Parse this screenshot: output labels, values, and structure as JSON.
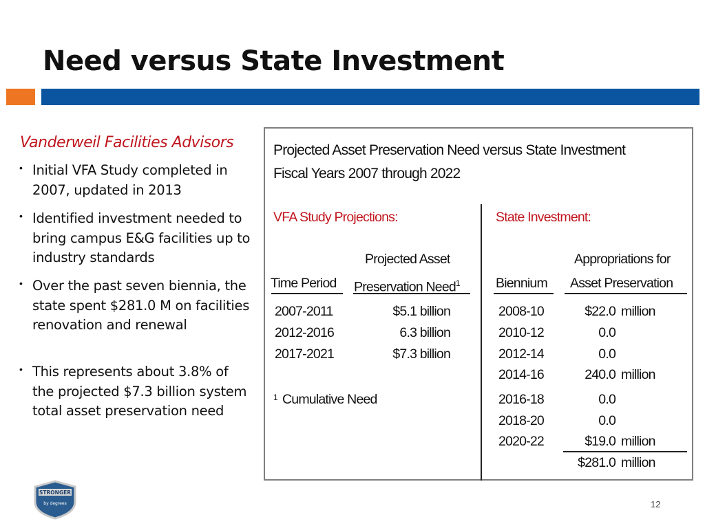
{
  "slide": {
    "title": "Need versus State Investment",
    "page_number": "12",
    "colors": {
      "accent_orange": "#ee7623",
      "accent_blue": "#0b55a0",
      "heading_red": "#c0161e"
    }
  },
  "left": {
    "heading": "Vanderweil Facilities Advisors",
    "bullets": [
      "Initial VFA Study completed in 2007, updated in 2013",
      "Identified investment needed to bring campus E&G facilities up to industry standards",
      "Over the past seven biennia, the state spent $281.0 M on facilities renovation and renewal",
      "This represents about 3.8% of the projected $7.3 billion system total asset preservation need"
    ]
  },
  "box": {
    "title_line1": "Projected Asset Preservation Need versus State Investment",
    "title_line2": "Fiscal Years 2007 through 2022",
    "vfa": {
      "heading": "VFA Study Projections:",
      "col1_header": "Time Period",
      "col2_header_line1": "Projected Asset",
      "col2_header_line2": "Preservation Need",
      "col2_header_sup": "1",
      "rows": [
        {
          "period": "2007-2011",
          "need": "$5.1 billion"
        },
        {
          "period": "2012-2016",
          "need": "6.3 billion"
        },
        {
          "period": "2017-2021",
          "need": "$7.3 billion"
        }
      ],
      "footnote_mark": "1",
      "footnote_text": "Cumulative Need"
    },
    "state": {
      "heading": "State Investment:",
      "col1_header": "Biennium",
      "col2_header_line1": "Appropriations for",
      "col2_header_line2": "Asset Preservation",
      "rows": [
        {
          "biennium": "2008-10",
          "amount": "$22.0",
          "unit": "million"
        },
        {
          "biennium": "2010-12",
          "amount": "0.0",
          "unit": ""
        },
        {
          "biennium": "2012-14",
          "amount": "0.0",
          "unit": ""
        },
        {
          "biennium": "2014-16",
          "amount": "240.0",
          "unit": "million"
        },
        {
          "biennium": "2016-18",
          "amount": "0.0",
          "unit": ""
        },
        {
          "biennium": "2018-20",
          "amount": "0.0",
          "unit": ""
        },
        {
          "biennium": "2020-22",
          "amount": "$19.0",
          "unit": "million"
        }
      ],
      "total_amount": "$281.0",
      "total_unit": "million"
    }
  },
  "logo": {
    "line1": "STRONGER",
    "line2": "by degrees"
  }
}
